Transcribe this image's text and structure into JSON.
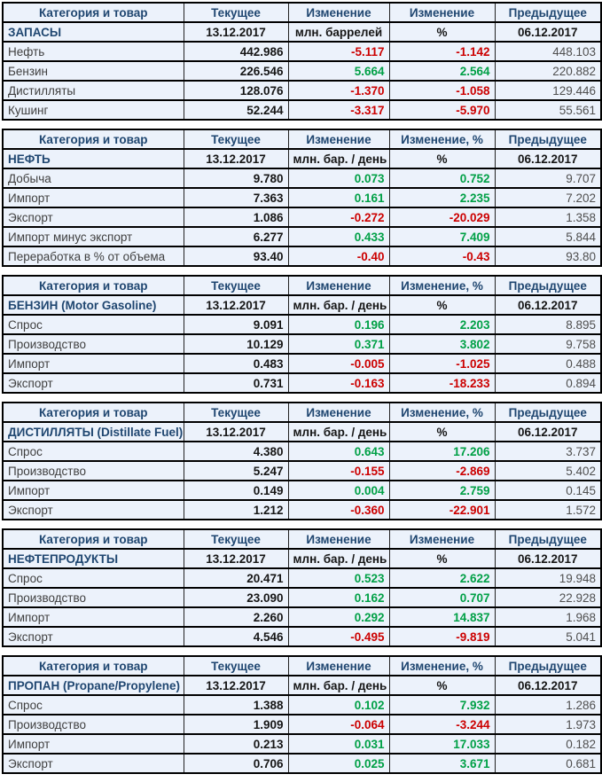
{
  "colors": {
    "positive": "#00A046",
    "negative": "#CC0000",
    "header_text": "#1F4670",
    "row_bg": "#ECF2FB",
    "border": "#000000"
  },
  "chart_data": [
    {
      "type": "table",
      "title": "ЗАПАСЫ",
      "columns": [
        "Категория и товар",
        "Текущее",
        "Изменение",
        "Изменение",
        "Предыдущее"
      ],
      "subheader": [
        "ЗАПАСЫ",
        "13.12.2017",
        "млн. баррелей",
        "%",
        "06.12.2017"
      ],
      "rows": [
        {
          "label": "Нефть",
          "current": "442.986",
          "change": "-5.117",
          "change_pct": "-1.142",
          "previous": "448.103"
        },
        {
          "label": "Бензин",
          "current": "226.546",
          "change": "5.664",
          "change_pct": "2.564",
          "previous": "220.882"
        },
        {
          "label": "Дистилляты",
          "current": "128.076",
          "change": "-1.370",
          "change_pct": "-1.058",
          "previous": "129.446"
        },
        {
          "label": "Кушинг",
          "current": "52.244",
          "change": "-3.317",
          "change_pct": "-5.970",
          "previous": "55.561"
        }
      ]
    },
    {
      "type": "table",
      "title": "НЕФТЬ",
      "columns": [
        "Категория и товар",
        "Текущее",
        "Изменение",
        "Изменение, %",
        "Предыдущее"
      ],
      "subheader": [
        "НЕФТЬ",
        "13.12.2017",
        "млн. бар. / день",
        "%",
        "06.12.2017"
      ],
      "rows": [
        {
          "label": "Добыча",
          "current": "9.780",
          "change": "0.073",
          "change_pct": "0.752",
          "previous": "9.707"
        },
        {
          "label": "Импорт",
          "current": "7.363",
          "change": "0.161",
          "change_pct": "2.235",
          "previous": "7.202"
        },
        {
          "label": "Экспорт",
          "current": "1.086",
          "change": "-0.272",
          "change_pct": "-20.029",
          "previous": "1.358"
        },
        {
          "label": "Импорт минус экспорт",
          "current": "6.277",
          "change": "0.433",
          "change_pct": "7.409",
          "previous": "5.844"
        },
        {
          "label": "Переработка в % от объема",
          "current": "93.40",
          "change": "-0.40",
          "change_pct": "-0.43",
          "previous": "93.80"
        }
      ]
    },
    {
      "type": "table",
      "title": "БЕНЗИН (Motor Gasoline)",
      "columns": [
        "Категория и товар",
        "Текущее",
        "Изменение",
        "Изменение, %",
        "Предыдущее"
      ],
      "subheader": [
        "БЕНЗИН (Motor Gasoline)",
        "13.12.2017",
        "млн. бар. / день",
        "%",
        "06.12.2017"
      ],
      "rows": [
        {
          "label": "Спрос",
          "current": "9.091",
          "change": "0.196",
          "change_pct": "2.203",
          "previous": "8.895"
        },
        {
          "label": "Производство",
          "current": "10.129",
          "change": "0.371",
          "change_pct": "3.802",
          "previous": "9.758"
        },
        {
          "label": "Импорт",
          "current": "0.483",
          "change": "-0.005",
          "change_pct": "-1.025",
          "previous": "0.488"
        },
        {
          "label": "Экспорт",
          "current": "0.731",
          "change": "-0.163",
          "change_pct": "-18.233",
          "previous": "0.894"
        }
      ]
    },
    {
      "type": "table",
      "title": "ДИСТИЛЛЯТЫ (Distillate Fuel)",
      "columns": [
        "Категория и товар",
        "Текущее",
        "Изменение",
        "Изменение, %",
        "Предыдущее"
      ],
      "subheader": [
        "ДИСТИЛЛЯТЫ (Distillate Fuel)",
        "13.12.2017",
        "млн. бар. / день",
        "%",
        "06.12.2017"
      ],
      "rows": [
        {
          "label": "Спрос",
          "current": "4.380",
          "change": "0.643",
          "change_pct": "17.206",
          "previous": "3.737"
        },
        {
          "label": "Производство",
          "current": "5.247",
          "change": "-0.155",
          "change_pct": "-2.869",
          "previous": "5.402"
        },
        {
          "label": "Импорт",
          "current": "0.149",
          "change": "0.004",
          "change_pct": "2.759",
          "previous": "0.145"
        },
        {
          "label": "Экспорт",
          "current": "1.212",
          "change": "-0.360",
          "change_pct": "-22.901",
          "previous": "1.572"
        }
      ]
    },
    {
      "type": "table",
      "title": "НЕФТЕПРОДУКТЫ",
      "columns": [
        "Категория и товар",
        "Текущее",
        "Изменение",
        "Изменение",
        "Предыдущее"
      ],
      "subheader": [
        "НЕФТЕПРОДУКТЫ",
        "13.12.2017",
        "млн. бар. / день",
        "%",
        "06.12.2017"
      ],
      "rows": [
        {
          "label": "Спрос",
          "current": "20.471",
          "change": "0.523",
          "change_pct": "2.622",
          "previous": "19.948"
        },
        {
          "label": "Производство",
          "current": "23.090",
          "change": "0.162",
          "change_pct": "0.707",
          "previous": "22.928"
        },
        {
          "label": "Импорт",
          "current": "2.260",
          "change": "0.292",
          "change_pct": "14.837",
          "previous": "1.968"
        },
        {
          "label": "Экспорт",
          "current": "4.546",
          "change": "-0.495",
          "change_pct": "-9.819",
          "previous": "5.041"
        }
      ]
    },
    {
      "type": "table",
      "title": "ПРОПАН (Propane/Propylene)",
      "columns": [
        "Категория и товар",
        "Текущее",
        "Изменение",
        "Изменение, %",
        "Предыдущее"
      ],
      "subheader": [
        "ПРОПАН (Propane/Propylene)",
        "13.12.2017",
        "млн. бар. / день",
        "%",
        "06.12.2017"
      ],
      "rows": [
        {
          "label": "Спрос",
          "current": "1.388",
          "change": "0.102",
          "change_pct": "7.932",
          "previous": "1.286"
        },
        {
          "label": "Производство",
          "current": "1.909",
          "change": "-0.064",
          "change_pct": "-3.244",
          "previous": "1.973"
        },
        {
          "label": "Импорт",
          "current": "0.213",
          "change": "0.031",
          "change_pct": "17.033",
          "previous": "0.182"
        },
        {
          "label": "Экспорт",
          "current": "0.706",
          "change": "0.025",
          "change_pct": "3.671",
          "previous": "0.681"
        }
      ]
    }
  ]
}
